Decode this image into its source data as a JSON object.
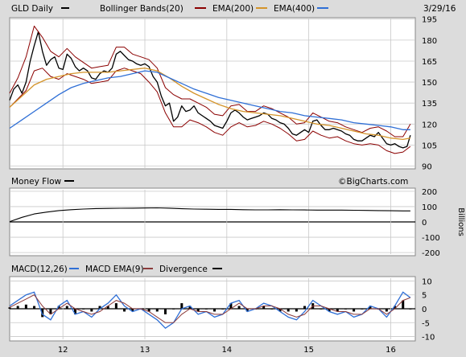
{
  "header": {
    "symbol_label": "GLD Daily",
    "bb_label": "Bollinger Bands(20)",
    "ema200_label": "EMA(200)",
    "ema400_label": "EMA(400)",
    "date": "3/29/16",
    "watermark": "©BigCharts.com"
  },
  "colors": {
    "price": "#000000",
    "bollinger": "#8b0000",
    "ema200": "#d4942a",
    "ema400": "#2f6fd6",
    "macd": "#2f6fd6",
    "macd_ema": "#8b3a3a",
    "divergence": "#000000",
    "panel_bg": "#ffffff",
    "grid": "#c8c8c8",
    "frame_bg": "#dcdcdc"
  },
  "chart_data": [
    {
      "type": "line",
      "panel": "price",
      "x_tick_labels": [
        "12",
        "13",
        "14",
        "15",
        "16"
      ],
      "x_tick_positions": [
        2012,
        2013,
        2014,
        2015,
        2016
      ],
      "xlim": [
        2011.35,
        2016.3
      ],
      "ylim": [
        88,
        196
      ],
      "y_ticks": [
        90,
        105,
        120,
        135,
        150,
        165,
        180,
        195
      ],
      "series": [
        {
          "name": "GLD Daily",
          "x": [
            2011.35,
            2011.4,
            2011.45,
            2011.5,
            2011.55,
            2011.6,
            2011.65,
            2011.7,
            2011.75,
            2011.8,
            2011.85,
            2011.9,
            2011.95,
            2012.0,
            2012.05,
            2012.1,
            2012.15,
            2012.2,
            2012.25,
            2012.3,
            2012.35,
            2012.4,
            2012.45,
            2012.5,
            2012.55,
            2012.6,
            2012.65,
            2012.7,
            2012.75,
            2012.8,
            2012.85,
            2012.9,
            2012.95,
            2013.0,
            2013.05,
            2013.1,
            2013.15,
            2013.2,
            2013.25,
            2013.3,
            2013.35,
            2013.4,
            2013.45,
            2013.5,
            2013.55,
            2013.6,
            2013.65,
            2013.7,
            2013.75,
            2013.8,
            2013.85,
            2013.9,
            2013.95,
            2014.0,
            2014.05,
            2014.1,
            2014.15,
            2014.2,
            2014.25,
            2014.3,
            2014.35,
            2014.4,
            2014.45,
            2014.5,
            2014.55,
            2014.6,
            2014.65,
            2014.7,
            2014.75,
            2014.8,
            2014.85,
            2014.9,
            2014.95,
            2015.0,
            2015.05,
            2015.1,
            2015.15,
            2015.2,
            2015.25,
            2015.3,
            2015.35,
            2015.4,
            2015.45,
            2015.5,
            2015.55,
            2015.6,
            2015.65,
            2015.7,
            2015.75,
            2015.8,
            2015.85,
            2015.9,
            2015.95,
            2016.0,
            2016.05,
            2016.1,
            2016.15,
            2016.2,
            2016.24
          ],
          "values": [
            137,
            145,
            148,
            142,
            150,
            165,
            176,
            186,
            172,
            162,
            166,
            168,
            160,
            159,
            170,
            167,
            161,
            158,
            160,
            158,
            153,
            152,
            156,
            158,
            157,
            160,
            170,
            172,
            169,
            166,
            165,
            163,
            162,
            163,
            161,
            154,
            150,
            140,
            133,
            135,
            122,
            125,
            133,
            129,
            130,
            133,
            128,
            126,
            124,
            122,
            119,
            118,
            117,
            122,
            128,
            130,
            128,
            125,
            123,
            124,
            125,
            126,
            128,
            127,
            124,
            123,
            121,
            120,
            117,
            113,
            112,
            114,
            116,
            114,
            122,
            123,
            119,
            116,
            116,
            117,
            116,
            115,
            113,
            112,
            109,
            108,
            108,
            110,
            112,
            111,
            114,
            110,
            106,
            105,
            106,
            104,
            103,
            104,
            112
          ]
        },
        {
          "name": "Bollinger Bands(20) upper",
          "x": [
            2011.35,
            2011.45,
            2011.55,
            2011.65,
            2011.75,
            2011.85,
            2011.95,
            2012.05,
            2012.15,
            2012.25,
            2012.35,
            2012.45,
            2012.55,
            2012.65,
            2012.75,
            2012.85,
            2012.95,
            2013.05,
            2013.15,
            2013.25,
            2013.35,
            2013.45,
            2013.55,
            2013.65,
            2013.75,
            2013.85,
            2013.95,
            2014.05,
            2014.15,
            2014.25,
            2014.35,
            2014.45,
            2014.55,
            2014.65,
            2014.75,
            2014.85,
            2014.95,
            2015.05,
            2015.15,
            2015.25,
            2015.35,
            2015.45,
            2015.55,
            2015.65,
            2015.75,
            2015.85,
            2015.95,
            2016.05,
            2016.15,
            2016.24
          ],
          "values": [
            142,
            153,
            168,
            190,
            182,
            172,
            168,
            174,
            168,
            164,
            160,
            161,
            162,
            175,
            175,
            170,
            168,
            166,
            160,
            146,
            141,
            138,
            138,
            135,
            132,
            127,
            126,
            133,
            134,
            129,
            129,
            133,
            131,
            128,
            125,
            120,
            121,
            128,
            125,
            122,
            121,
            118,
            116,
            114,
            117,
            118,
            115,
            111,
            111,
            120
          ]
        },
        {
          "name": "Bollinger Bands(20) lower",
          "x": [
            2011.35,
            2011.45,
            2011.55,
            2011.65,
            2011.75,
            2011.85,
            2011.95,
            2012.05,
            2012.15,
            2012.25,
            2012.35,
            2012.45,
            2012.55,
            2012.65,
            2012.75,
            2012.85,
            2012.95,
            2013.05,
            2013.15,
            2013.25,
            2013.35,
            2013.45,
            2013.55,
            2013.65,
            2013.75,
            2013.85,
            2013.95,
            2014.05,
            2014.15,
            2014.25,
            2014.35,
            2014.45,
            2014.55,
            2014.65,
            2014.75,
            2014.85,
            2014.95,
            2015.05,
            2015.15,
            2015.25,
            2015.35,
            2015.45,
            2015.55,
            2015.65,
            2015.75,
            2015.85,
            2015.95,
            2016.05,
            2016.15,
            2016.24
          ],
          "values": [
            132,
            138,
            144,
            158,
            160,
            154,
            152,
            156,
            154,
            152,
            149,
            150,
            151,
            158,
            160,
            158,
            156,
            150,
            143,
            128,
            118,
            118,
            123,
            121,
            118,
            114,
            112,
            118,
            121,
            118,
            119,
            122,
            120,
            117,
            113,
            108,
            109,
            115,
            112,
            110,
            111,
            108,
            106,
            105,
            106,
            105,
            101,
            99,
            100,
            104
          ]
        },
        {
          "name": "EMA(200)",
          "x": [
            2011.35,
            2011.5,
            2011.65,
            2011.8,
            2011.95,
            2012.1,
            2012.25,
            2012.4,
            2012.55,
            2012.7,
            2012.85,
            2013.0,
            2013.15,
            2013.3,
            2013.45,
            2013.6,
            2013.75,
            2013.9,
            2014.05,
            2014.2,
            2014.35,
            2014.5,
            2014.65,
            2014.8,
            2014.95,
            2015.1,
            2015.25,
            2015.4,
            2015.55,
            2015.7,
            2015.85,
            2016.0,
            2016.15,
            2016.24
          ],
          "values": [
            132,
            140,
            148,
            152,
            154,
            156,
            157,
            157,
            157,
            158,
            159,
            160,
            158,
            153,
            147,
            142,
            138,
            134,
            131,
            129,
            128,
            127,
            126,
            124,
            122,
            120,
            119,
            117,
            115,
            113,
            112,
            110,
            109,
            110
          ]
        },
        {
          "name": "EMA(400)",
          "x": [
            2011.35,
            2011.5,
            2011.65,
            2011.8,
            2011.95,
            2012.1,
            2012.25,
            2012.4,
            2012.55,
            2012.7,
            2012.85,
            2013.0,
            2013.15,
            2013.3,
            2013.45,
            2013.6,
            2013.75,
            2013.9,
            2014.05,
            2014.2,
            2014.35,
            2014.5,
            2014.65,
            2014.8,
            2014.95,
            2015.1,
            2015.25,
            2015.4,
            2015.55,
            2015.7,
            2015.85,
            2016.0,
            2016.15,
            2016.24
          ],
          "values": [
            117,
            123,
            129,
            135,
            141,
            146,
            149,
            151,
            153,
            154,
            156,
            158,
            157,
            153,
            149,
            145,
            142,
            139,
            137,
            135,
            133,
            131,
            129,
            128,
            126,
            125,
            124,
            123,
            121,
            120,
            119,
            118,
            116,
            116
          ]
        }
      ]
    },
    {
      "type": "line",
      "panel": "money_flow",
      "title": "Money Flow",
      "ylabel": "Billions",
      "ylim": [
        -210,
        210
      ],
      "y_ticks": [
        -200,
        -100,
        0,
        100,
        200
      ],
      "series": [
        {
          "name": "Money Flow",
          "x": [
            2011.35,
            2011.5,
            2011.65,
            2011.8,
            2011.95,
            2012.1,
            2012.25,
            2012.4,
            2012.55,
            2012.7,
            2012.85,
            2013.0,
            2013.15,
            2013.3,
            2013.45,
            2013.6,
            2013.75,
            2013.9,
            2014.05,
            2014.2,
            2014.35,
            2014.5,
            2014.65,
            2014.8,
            2014.95,
            2015.1,
            2015.25,
            2015.4,
            2015.55,
            2015.7,
            2015.85,
            2016.0,
            2016.15,
            2016.24
          ],
          "values": [
            2,
            30,
            52,
            64,
            74,
            80,
            84,
            87,
            88,
            89,
            90,
            91,
            92,
            90,
            86,
            84,
            83,
            82,
            82,
            80,
            79,
            79,
            80,
            79,
            78,
            77,
            77,
            77,
            76,
            75,
            74,
            73,
            72,
            72
          ]
        }
      ]
    },
    {
      "type": "line",
      "panel": "macd",
      "title": "MACD(12,26)",
      "ylim": [
        -11,
        11
      ],
      "y_ticks": [
        -10,
        -5,
        0,
        5,
        10
      ],
      "legend": [
        "MACD(12,26)",
        "MACD EMA(9)",
        "Divergence"
      ],
      "series": [
        {
          "name": "MACD(12,26)",
          "x": [
            2011.35,
            2011.45,
            2011.55,
            2011.65,
            2011.75,
            2011.85,
            2011.95,
            2012.05,
            2012.15,
            2012.25,
            2012.35,
            2012.45,
            2012.55,
            2012.65,
            2012.75,
            2012.85,
            2012.95,
            2013.05,
            2013.15,
            2013.25,
            2013.35,
            2013.45,
            2013.55,
            2013.65,
            2013.75,
            2013.85,
            2013.95,
            2014.05,
            2014.15,
            2014.25,
            2014.35,
            2014.45,
            2014.55,
            2014.65,
            2014.75,
            2014.85,
            2014.95,
            2015.05,
            2015.15,
            2015.25,
            2015.35,
            2015.45,
            2015.55,
            2015.65,
            2015.75,
            2015.85,
            2015.95,
            2016.05,
            2016.15,
            2016.24
          ],
          "values": [
            1,
            3,
            5,
            6,
            -2,
            -4,
            1,
            3,
            -2,
            -1,
            -3,
            0,
            2,
            5,
            1,
            -1,
            0,
            -2,
            -4,
            -7,
            -5,
            0,
            1,
            -2,
            -1,
            -3,
            -2,
            2,
            3,
            -1,
            0,
            2,
            1,
            -1,
            -3,
            -4,
            -1,
            3,
            1,
            -1,
            -2,
            -1,
            -3,
            -2,
            1,
            0,
            -3,
            1,
            6,
            4
          ]
        },
        {
          "name": "MACD EMA(9)",
          "x": [
            2011.35,
            2011.45,
            2011.55,
            2011.65,
            2011.75,
            2011.85,
            2011.95,
            2012.05,
            2012.15,
            2012.25,
            2012.35,
            2012.45,
            2012.55,
            2012.65,
            2012.75,
            2012.85,
            2012.95,
            2013.05,
            2013.15,
            2013.25,
            2013.35,
            2013.45,
            2013.55,
            2013.65,
            2013.75,
            2013.85,
            2013.95,
            2014.05,
            2014.15,
            2014.25,
            2014.35,
            2014.45,
            2014.55,
            2014.65,
            2014.75,
            2014.85,
            2014.95,
            2015.05,
            2015.15,
            2015.25,
            2015.35,
            2015.45,
            2015.55,
            2015.65,
            2015.75,
            2015.85,
            2015.95,
            2016.05,
            2016.15,
            2016.24
          ],
          "values": [
            0.5,
            2,
            3.5,
            5,
            1,
            -2,
            0,
            2,
            0,
            -1,
            -2,
            -1,
            1,
            3,
            2,
            0,
            0,
            -1,
            -3,
            -5,
            -5,
            -2,
            0,
            -1,
            -1,
            -2,
            -2,
            0,
            2,
            0,
            0,
            1,
            1,
            0,
            -2,
            -3,
            -2,
            1,
            1,
            0,
            -1,
            -1,
            -2,
            -2,
            0,
            0,
            -2,
            0,
            3,
            4
          ]
        },
        {
          "name": "Divergence",
          "x": [
            2011.35,
            2011.45,
            2011.55,
            2011.65,
            2011.75,
            2011.85,
            2011.95,
            2012.05,
            2012.15,
            2012.25,
            2012.35,
            2012.45,
            2012.55,
            2012.65,
            2012.75,
            2012.85,
            2012.95,
            2013.05,
            2013.15,
            2013.25,
            2013.35,
            2013.45,
            2013.55,
            2013.65,
            2013.75,
            2013.85,
            2013.95,
            2014.05,
            2014.15,
            2014.25,
            2014.35,
            2014.45,
            2014.55,
            2014.65,
            2014.75,
            2014.85,
            2014.95,
            2015.05,
            2015.15,
            2015.25,
            2015.35,
            2015.45,
            2015.55,
            2015.65,
            2015.75,
            2015.85,
            2015.95,
            2016.05,
            2016.15,
            2016.24
          ],
          "values": [
            0.5,
            1,
            1.5,
            1,
            -3,
            -2,
            1,
            1,
            -2,
            0,
            -1,
            1,
            1,
            2,
            -1,
            -1,
            0,
            -1,
            -1,
            -2,
            0,
            2,
            1,
            -1,
            0,
            -1,
            0,
            2,
            1,
            -1,
            0,
            1,
            0,
            -1,
            -1,
            -1,
            1,
            2,
            0,
            -1,
            -1,
            0,
            -1,
            0,
            1,
            0,
            -1,
            1,
            3,
            0
          ]
        }
      ]
    }
  ]
}
